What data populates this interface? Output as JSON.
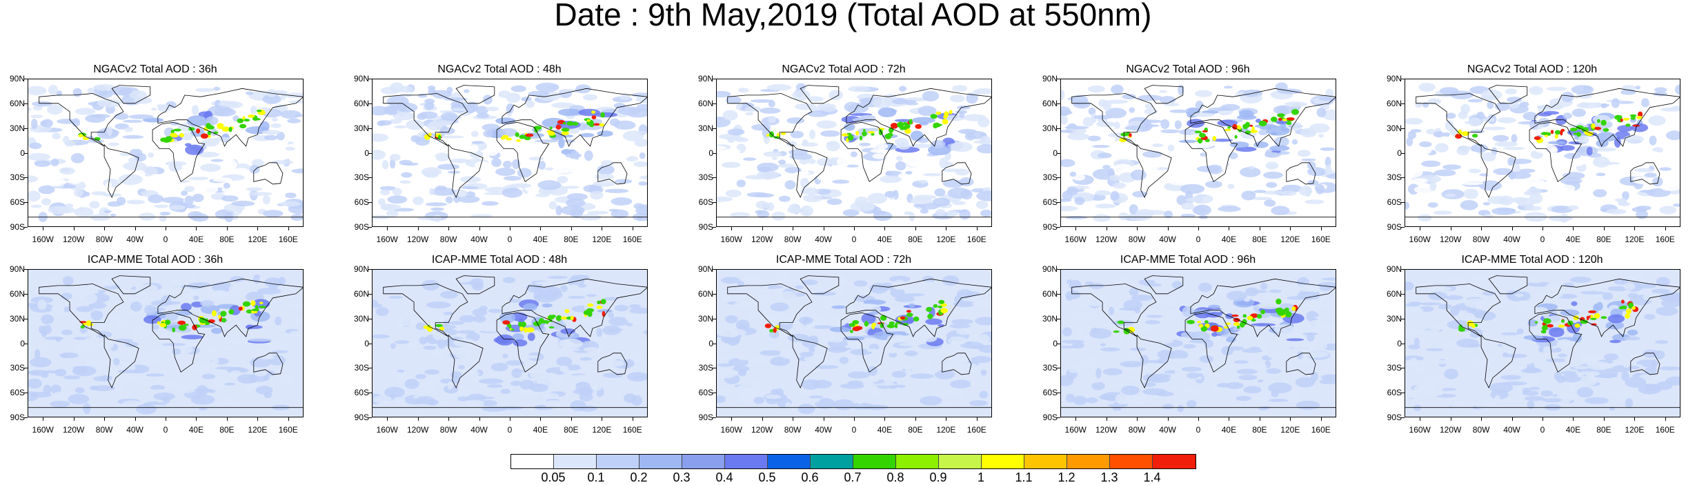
{
  "title": "Date : 9th May,2019 (Total AOD at 550nm)",
  "lat_labels": [
    "90N",
    "60N",
    "30N",
    "0",
    "30S",
    "60S",
    "90S"
  ],
  "lon_labels": [
    "160W",
    "120W",
    "80W",
    "40W",
    "0",
    "40E",
    "80E",
    "120E",
    "160E"
  ],
  "rows": [
    {
      "model": "NGACv2",
      "panels": [
        {
          "title": "NGACv2 Total AOD : 36h"
        },
        {
          "title": "NGACv2 Total AOD : 48h"
        },
        {
          "title": "NGACv2 Total AOD : 72h"
        },
        {
          "title": "NGACv2 Total AOD : 96h"
        },
        {
          "title": "NGACv2 Total AOD : 120h"
        }
      ]
    },
    {
      "model": "ICAP-MME",
      "panels": [
        {
          "title": "ICAP-MME Total AOD : 36h"
        },
        {
          "title": "ICAP-MME Total AOD : 48h"
        },
        {
          "title": "ICAP-MME Total AOD : 72h"
        },
        {
          "title": "ICAP-MME Total AOD : 96h"
        },
        {
          "title": "ICAP-MME Total AOD : 120h"
        }
      ]
    }
  ],
  "colorbar": {
    "labels": [
      "0.05",
      "0.1",
      "0.2",
      "0.3",
      "0.4",
      "0.5",
      "0.6",
      "0.7",
      "0.8",
      "0.9",
      "1",
      "1.1",
      "1.2",
      "1.3",
      "1.4"
    ],
    "colors": [
      "#ffffff",
      "#dce6fa",
      "#bfd0f8",
      "#9fb8f4",
      "#8aa0ee",
      "#6b7af0",
      "#0a63e6",
      "#00a0a0",
      "#33d400",
      "#8cf000",
      "#c8f54a",
      "#ffff00",
      "#ffc400",
      "#ff9a00",
      "#ff5000",
      "#f01e0a"
    ]
  },
  "map_colors": {
    "ocean_low": "#ffffff",
    "aod_light": "#dce6fa",
    "aod_mid": "#bfd0f8",
    "aod_blue": "#9fb8f4",
    "aod_deep": "#6b7af0",
    "dust_green": "#33d400",
    "dust_yellow": "#ffff00",
    "dust_red": "#f01e0a"
  }
}
